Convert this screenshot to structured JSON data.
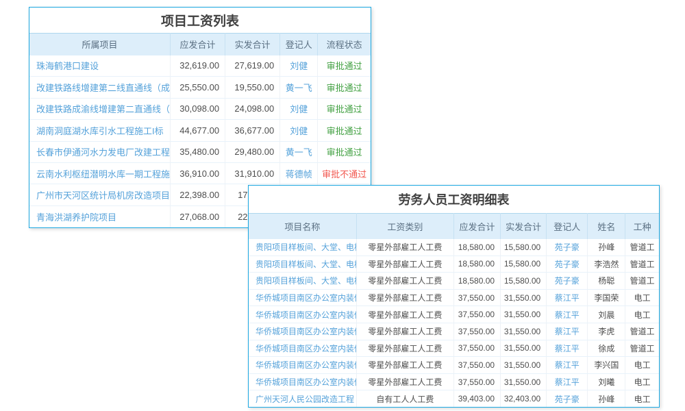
{
  "colors": {
    "table_border": "#1aa7e1",
    "header_background": "#ddeefa",
    "header_text": "#5b7083",
    "title_text": "#404040",
    "body_text": "#4d4d4d",
    "link_blue": "#55a2da",
    "status_pass_green": "#43a143",
    "status_fail_red": "#f2574f"
  },
  "project_salary_table": {
    "title": "项目工资列表",
    "headers": [
      "所属项目",
      "应发合计",
      "实发合计",
      "登记人",
      "流程状态"
    ],
    "rows": [
      [
        "珠海鹤港口建设",
        "32,619.00",
        "27,619.00",
        "刘健",
        "审批通过"
      ],
      [
        "改建铁路线增建第二线直通线（成...",
        "25,550.00",
        "19,550.00",
        "黄一飞",
        "审批通过"
      ],
      [
        "改建铁路成渝线增建第二直通线（...",
        "30,098.00",
        "24,098.00",
        "刘健",
        "审批通过"
      ],
      [
        "湖南洞庭湖水库引水工程施工I标",
        "44,677.00",
        "36,677.00",
        "刘健",
        "审批通过"
      ],
      [
        "长春市伊通河水力发电厂改建工程",
        "35,480.00",
        "29,480.00",
        "黄一飞",
        "审批通过"
      ],
      [
        "云南水利枢纽潜明水库一期工程施...",
        "36,910.00",
        "31,910.00",
        "蒋德帧",
        "审批不通过"
      ],
      [
        "广州市天河区统计局机房改造项目",
        "22,398.00",
        {
          "text": "17",
          "partial": true
        },
        "",
        ""
      ],
      [
        "青海洪湖养护院项目",
        "27,068.00",
        {
          "text": "22",
          "partial": true
        },
        "",
        ""
      ]
    ]
  },
  "labor_salary_table": {
    "title": "劳务人员工资明细表",
    "headers": [
      "项目名称",
      "工资类别",
      "应发合计",
      "实发合计",
      "登记人",
      "姓名",
      "工种"
    ],
    "rows": [
      [
        "贵阳项目样板间、大堂、电梯厅装修",
        "零星外部雇工人工费",
        "18,580.00",
        "15,580.00",
        "苑子豪",
        "孙峰",
        "管道工"
      ],
      [
        "贵阳项目样板间、大堂、电梯厅装修",
        "零星外部雇工人工费",
        "18,580.00",
        "15,580.00",
        "苑子豪",
        "李浩然",
        "管道工"
      ],
      [
        "贵阳项目样板间、大堂、电梯厅装修",
        "零星外部雇工人工费",
        "18,580.00",
        "15,580.00",
        "苑子豪",
        "杨聪",
        "管道工"
      ],
      [
        "华侨城项目南区办公室内装修工程",
        "零星外部雇工人工费",
        "37,550.00",
        "31,550.00",
        "蔡江平",
        "李国荣",
        "电工"
      ],
      [
        "华侨城项目南区办公室内装修工程",
        "零星外部雇工人工费",
        "37,550.00",
        "31,550.00",
        "蔡江平",
        "刘晨",
        "电工"
      ],
      [
        "华侨城项目南区办公室内装修工程",
        "零星外部雇工人工费",
        "37,550.00",
        "31,550.00",
        "蔡江平",
        "李虎",
        "管道工"
      ],
      [
        "华侨城项目南区办公室内装修工程",
        "零星外部雇工人工费",
        "37,550.00",
        "31,550.00",
        "蔡江平",
        "徐成",
        "管道工"
      ],
      [
        "华侨城项目南区办公室内装修工程",
        "零星外部雇工人工费",
        "37,550.00",
        "31,550.00",
        "蔡江平",
        "李兴国",
        "电工"
      ],
      [
        "华侨城项目南区办公室内装修工程",
        "零星外部雇工人工费",
        "37,550.00",
        "31,550.00",
        "蔡江平",
        "刘曦",
        "电工"
      ],
      [
        "广州天河人民公园改造工程",
        "自有工人人工费",
        "39,403.00",
        "32,403.00",
        "苑子豪",
        "孙峰",
        "电工"
      ]
    ]
  }
}
